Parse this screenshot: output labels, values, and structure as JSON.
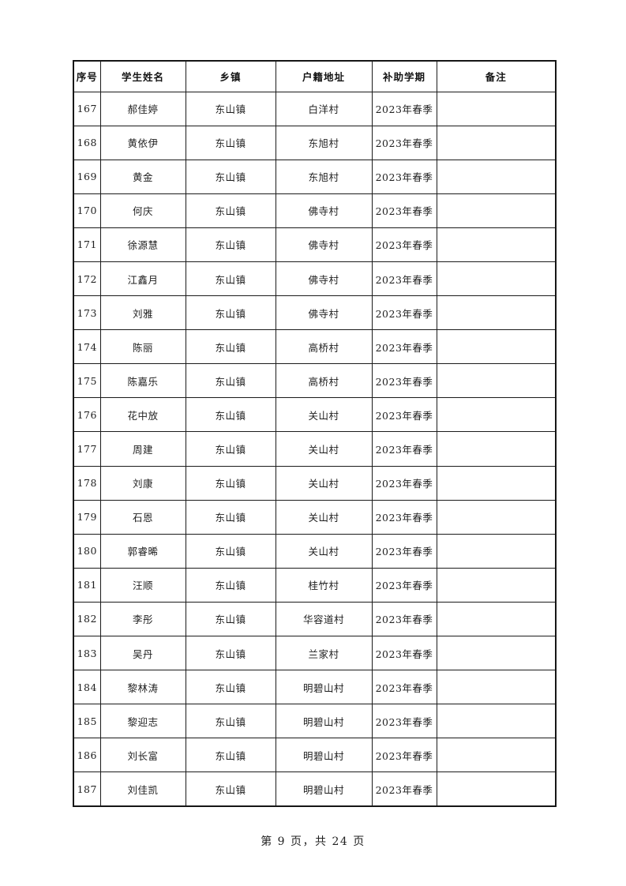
{
  "table": {
    "headers": [
      "序号",
      "学生姓名",
      "乡镇",
      "户籍地址",
      "补助学期",
      "备注"
    ],
    "rows": [
      [
        "167",
        "郝佳婷",
        "东山镇",
        "白洋村",
        "2023年春季",
        ""
      ],
      [
        "168",
        "黄依伊",
        "东山镇",
        "东旭村",
        "2023年春季",
        ""
      ],
      [
        "169",
        "黄金",
        "东山镇",
        "东旭村",
        "2023年春季",
        ""
      ],
      [
        "170",
        "何庆",
        "东山镇",
        "佛寺村",
        "2023年春季",
        ""
      ],
      [
        "171",
        "徐源慧",
        "东山镇",
        "佛寺村",
        "2023年春季",
        ""
      ],
      [
        "172",
        "江鑫月",
        "东山镇",
        "佛寺村",
        "2023年春季",
        ""
      ],
      [
        "173",
        "刘雅",
        "东山镇",
        "佛寺村",
        "2023年春季",
        ""
      ],
      [
        "174",
        "陈丽",
        "东山镇",
        "高桥村",
        "2023年春季",
        ""
      ],
      [
        "175",
        "陈嘉乐",
        "东山镇",
        "高桥村",
        "2023年春季",
        ""
      ],
      [
        "176",
        "花中放",
        "东山镇",
        "关山村",
        "2023年春季",
        ""
      ],
      [
        "177",
        "周建",
        "东山镇",
        "关山村",
        "2023年春季",
        ""
      ],
      [
        "178",
        "刘康",
        "东山镇",
        "关山村",
        "2023年春季",
        ""
      ],
      [
        "179",
        "石恩",
        "东山镇",
        "关山村",
        "2023年春季",
        ""
      ],
      [
        "180",
        "郭睿晞",
        "东山镇",
        "关山村",
        "2023年春季",
        ""
      ],
      [
        "181",
        "汪顺",
        "东山镇",
        "桂竹村",
        "2023年春季",
        ""
      ],
      [
        "182",
        "李彤",
        "东山镇",
        "华容道村",
        "2023年春季",
        ""
      ],
      [
        "183",
        "吴丹",
        "东山镇",
        "兰家村",
        "2023年春季",
        ""
      ],
      [
        "184",
        "黎林涛",
        "东山镇",
        "明碧山村",
        "2023年春季",
        ""
      ],
      [
        "185",
        "黎迎志",
        "东山镇",
        "明碧山村",
        "2023年春季",
        ""
      ],
      [
        "186",
        "刘长富",
        "东山镇",
        "明碧山村",
        "2023年春季",
        ""
      ],
      [
        "187",
        "刘佳凯",
        "东山镇",
        "明碧山村",
        "2023年春季",
        ""
      ]
    ]
  },
  "footer": {
    "page_text": "第 9 页，共 24 页"
  },
  "colors": {
    "border": "#1b1b1b",
    "text": "#1f1f1f",
    "background": "#ffffff"
  }
}
